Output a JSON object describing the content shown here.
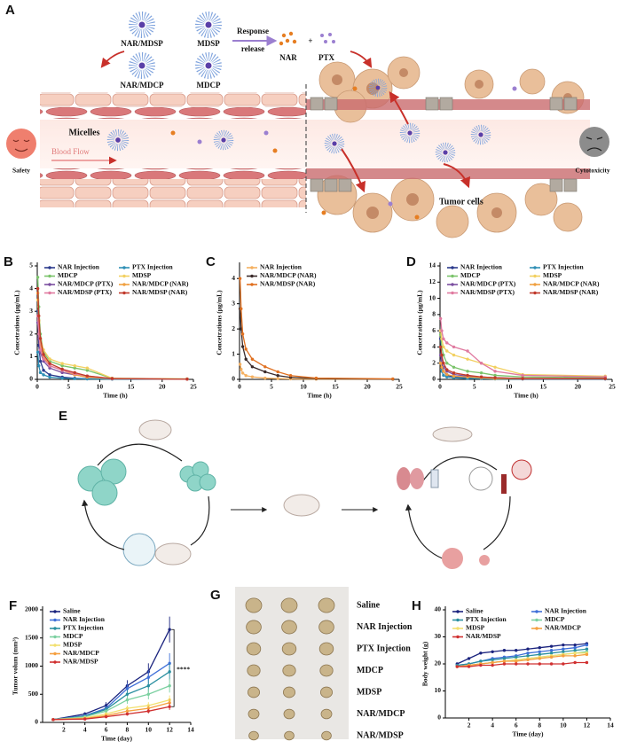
{
  "figure_a": {
    "label": "A",
    "micelles": [
      "NAR/MDSP",
      "MDSP",
      "NAR/MDCP",
      "MDCP"
    ],
    "response": [
      "Response",
      "release"
    ],
    "drugs": [
      "NAR",
      "PTX"
    ],
    "plus": "+",
    "micelles_label": "Micelles",
    "blood_flow": "Blood Flow",
    "safety": "Safety",
    "cytotoxicity": "Cytotoxicity",
    "tumor_cells": "Tumor cells"
  },
  "figure_e": {
    "label": "E"
  },
  "figure_g": {
    "label": "G",
    "groups": [
      "Saline",
      "NAR Injection",
      "PTX Injection",
      "MDCP",
      "MDSP",
      "NAR/MDCP",
      "NAR/MDSP"
    ]
  },
  "chart_data": [
    {
      "panel_label": "B",
      "type": "line",
      "x_label": "Time (h)",
      "y_label": "Concetrations (μg/mL)",
      "x": [
        0.083,
        0.25,
        0.5,
        1,
        2,
        4,
        6,
        8,
        12,
        24
      ],
      "xlim": [
        0,
        25
      ],
      "xticks": [
        0,
        5,
        10,
        15,
        20,
        25
      ],
      "ylim": [
        0,
        5
      ],
      "yticks": [
        0,
        1,
        2,
        3,
        4,
        5
      ],
      "series": [
        {
          "name": "NAR Injection",
          "color": "#2b3a8c",
          "values": [
            3.0,
            1.5,
            0.8,
            0.4,
            0.2,
            0.1,
            0.05,
            0.03,
            0.02,
            0.01
          ]
        },
        {
          "name": "PTX  Injection",
          "color": "#2f8fb5",
          "values": [
            1.2,
            0.6,
            0.3,
            0.2,
            0.1,
            0.05,
            0.03,
            0.02,
            0.01,
            0.01
          ]
        },
        {
          "name": "MDCP",
          "color": "#7ac36a",
          "values": [
            4.5,
            3.2,
            2.0,
            1.2,
            0.8,
            0.6,
            0.5,
            0.4,
            0.05,
            0.02
          ]
        },
        {
          "name": "MDSP",
          "color": "#f2d060",
          "values": [
            3.5,
            2.5,
            1.8,
            1.3,
            0.9,
            0.7,
            0.6,
            0.5,
            0.05,
            0.02
          ]
        },
        {
          "name": "NAR/MDCP (PTX)",
          "color": "#7b4fa0",
          "values": [
            2.5,
            1.8,
            1.2,
            0.8,
            0.5,
            0.3,
            0.2,
            0.1,
            0.03,
            0.01
          ]
        },
        {
          "name": "NAR/MDCP (NAR)",
          "color": "#f0a040",
          "values": [
            3.8,
            2.6,
            1.6,
            1.0,
            0.6,
            0.4,
            0.2,
            0.1,
            0.03,
            0.01
          ]
        },
        {
          "name": "NAR/MDSP (PTX)",
          "color": "#e07aa0",
          "values": [
            2.8,
            2.0,
            1.3,
            0.9,
            0.6,
            0.4,
            0.25,
            0.15,
            0.03,
            0.01
          ]
        },
        {
          "name": "NAR/MDSP (NAR)",
          "color": "#c0392b",
          "values": [
            4.0,
            2.8,
            1.8,
            1.1,
            0.7,
            0.45,
            0.3,
            0.15,
            0.04,
            0.01
          ]
        }
      ]
    },
    {
      "panel_label": "C",
      "type": "line",
      "x_label": "Time (h)",
      "y_label": "Concetrations (μg/mL)",
      "x": [
        0.083,
        0.25,
        0.5,
        1,
        2,
        4,
        6,
        8,
        12,
        24
      ],
      "xlim": [
        0,
        25
      ],
      "xticks": [
        0,
        5,
        10,
        15,
        20,
        25
      ],
      "ylim": [
        0,
        4.5
      ],
      "yticks": [
        0,
        1,
        2,
        3,
        4
      ],
      "series": [
        {
          "name": "NAR Injection",
          "color": "#f5b060",
          "values": [
            0.6,
            0.4,
            0.25,
            0.15,
            0.1,
            0.05,
            0.03,
            0.02,
            0.01,
            0.01
          ]
        },
        {
          "name": "NAR/MDCP (NAR)",
          "color": "#3a2a2a",
          "values": [
            2.8,
            2.0,
            1.3,
            0.8,
            0.5,
            0.3,
            0.15,
            0.08,
            0.03,
            0.01
          ]
        },
        {
          "name": "NAR/MDSP (NAR)",
          "color": "#e07020",
          "values": [
            4.0,
            2.8,
            1.8,
            1.2,
            0.8,
            0.5,
            0.3,
            0.15,
            0.05,
            0.02
          ]
        }
      ]
    },
    {
      "panel_label": "D",
      "type": "line",
      "x_label": "Time (h)",
      "y_label": "Concetrations (μg/mL)",
      "x": [
        0.083,
        0.25,
        0.5,
        1,
        2,
        4,
        6,
        8,
        12,
        24
      ],
      "xlim": [
        0,
        25
      ],
      "xticks": [
        0,
        5,
        10,
        15,
        20,
        25
      ],
      "ylim": [
        0,
        14
      ],
      "yticks": [
        0,
        2,
        4,
        6,
        8,
        10,
        12,
        14
      ],
      "series": [
        {
          "name": "NAR Injection",
          "color": "#2b3a8c",
          "values": [
            5,
            2,
            1,
            0.5,
            0.3,
            0.2,
            0.1,
            0.1,
            0.05,
            0.05
          ]
        },
        {
          "name": "PTX  Injection",
          "color": "#2f8fb5",
          "values": [
            2,
            1,
            0.5,
            0.3,
            0.2,
            0.1,
            0.1,
            0.05,
            0.05,
            0.05
          ]
        },
        {
          "name": "MDCP",
          "color": "#7ac36a",
          "values": [
            5.5,
            4,
            3,
            2,
            1.5,
            1,
            0.8,
            0.5,
            0.3,
            0.2
          ]
        },
        {
          "name": "MDSP",
          "color": "#f2d060",
          "values": [
            6,
            5,
            4,
            3.5,
            3,
            2.5,
            2,
            1.5,
            0.6,
            0.4
          ]
        },
        {
          "name": "NAR/MDCP (PTX)",
          "color": "#7b4fa0",
          "values": [
            3,
            2,
            1.5,
            1,
            0.6,
            0.4,
            0.3,
            0.2,
            0.1,
            0.1
          ]
        },
        {
          "name": "NAR/MDCP (NAR)",
          "color": "#f0a040",
          "values": [
            2,
            1.5,
            1,
            0.6,
            0.4,
            0.3,
            0.2,
            0.1,
            0.1,
            0.1
          ]
        },
        {
          "name": "NAR/MDSP (PTX)",
          "color": "#e07aa0",
          "values": [
            7.5,
            6,
            5,
            4.5,
            4,
            3.5,
            2,
            1,
            0.5,
            0.3
          ]
        },
        {
          "name": "NAR/MDSP (NAR)",
          "color": "#c0392b",
          "values": [
            4,
            3,
            2,
            1.2,
            0.8,
            0.5,
            0.3,
            0.2,
            0.1,
            0.1
          ]
        }
      ]
    },
    {
      "panel_label": "F",
      "type": "line",
      "x_label": "Time (day)",
      "y_label": "Tumor volum (mm³)",
      "annotation": "****",
      "x": [
        1,
        4,
        6,
        8,
        10,
        12
      ],
      "xlim": [
        0,
        14
      ],
      "xticks": [
        2,
        4,
        6,
        8,
        10,
        12,
        14
      ],
      "ylim": [
        0,
        2000
      ],
      "yticks": [
        0,
        500,
        1000,
        1500,
        2000
      ],
      "series": [
        {
          "name": "Saline",
          "color": "#1a237e",
          "values": [
            50,
            150,
            300,
            650,
            900,
            1650
          ],
          "errors": [
            10,
            30,
            60,
            100,
            150,
            230
          ]
        },
        {
          "name": "NAR Injection",
          "color": "#3f6fd8",
          "values": [
            50,
            120,
            250,
            600,
            800,
            1050
          ],
          "errors": [
            10,
            25,
            50,
            90,
            120,
            180
          ]
        },
        {
          "name": "PTX Injection",
          "color": "#2a8fa0",
          "values": [
            50,
            110,
            230,
            500,
            650,
            900
          ],
          "errors": [
            10,
            25,
            50,
            80,
            110,
            150
          ]
        },
        {
          "name": "MDCP",
          "color": "#7bd0a0",
          "values": [
            50,
            100,
            200,
            400,
            500,
            650
          ],
          "errors": [
            10,
            20,
            40,
            70,
            90,
            120
          ]
        },
        {
          "name": "MDSP",
          "color": "#f2e070",
          "values": [
            50,
            80,
            150,
            250,
            300,
            400
          ],
          "errors": [
            10,
            20,
            30,
            50,
            60,
            80
          ]
        },
        {
          "name": "NAR/MDCP",
          "color": "#f5a040",
          "values": [
            50,
            70,
            120,
            200,
            250,
            350
          ],
          "errors": [
            10,
            15,
            25,
            40,
            50,
            70
          ]
        },
        {
          "name": "NAR/MDSP",
          "color": "#d03030",
          "values": [
            50,
            60,
            100,
            150,
            200,
            280
          ],
          "errors": [
            10,
            15,
            20,
            30,
            40,
            60
          ]
        }
      ]
    },
    {
      "panel_label": "H",
      "type": "line",
      "x_label": "Time (day)",
      "y_label": "Body weight (g)",
      "x": [
        1,
        2,
        3,
        4,
        5,
        6,
        7,
        8,
        9,
        10,
        11,
        12
      ],
      "xlim": [
        0,
        14
      ],
      "xticks": [
        2,
        4,
        6,
        8,
        10,
        12,
        14
      ],
      "ylim": [
        0,
        40
      ],
      "yticks": [
        0,
        10,
        20,
        30,
        40
      ],
      "series": [
        {
          "name": "Saline",
          "color": "#1a237e",
          "values": [
            20,
            22,
            24,
            24.5,
            25,
            25,
            25.5,
            26,
            26.5,
            27,
            27,
            27.5
          ]
        },
        {
          "name": "NAR Injection",
          "color": "#3f6fd8",
          "values": [
            19.5,
            20,
            21,
            22,
            22.5,
            23,
            24,
            24.5,
            25,
            25.5,
            26,
            27
          ]
        },
        {
          "name": "PTX Injection",
          "color": "#2a8fa0",
          "values": [
            19.5,
            20,
            21,
            21.5,
            22,
            22.5,
            23,
            23.5,
            24,
            24.5,
            25,
            25.5
          ]
        },
        {
          "name": "MDCP",
          "color": "#7bd0a0",
          "values": [
            19,
            19.5,
            20,
            20.5,
            21,
            21.5,
            22,
            22.5,
            23,
            23.5,
            24,
            24.5
          ]
        },
        {
          "name": "MDSP",
          "color": "#f2e070",
          "values": [
            19,
            19.5,
            20,
            20.5,
            21,
            21.5,
            22,
            22.5,
            23,
            23.5,
            24,
            24
          ]
        },
        {
          "name": "NAR/MDCP",
          "color": "#f5a040",
          "values": [
            19,
            19.5,
            20,
            20.5,
            21,
            21,
            21.5,
            22,
            22.5,
            23,
            23,
            23.5
          ]
        },
        {
          "name": "NAR/MDSP",
          "color": "#d03030",
          "values": [
            19,
            19,
            19.5,
            19.5,
            20,
            20,
            20,
            20,
            20,
            20,
            20.5,
            20.5
          ]
        }
      ]
    }
  ]
}
